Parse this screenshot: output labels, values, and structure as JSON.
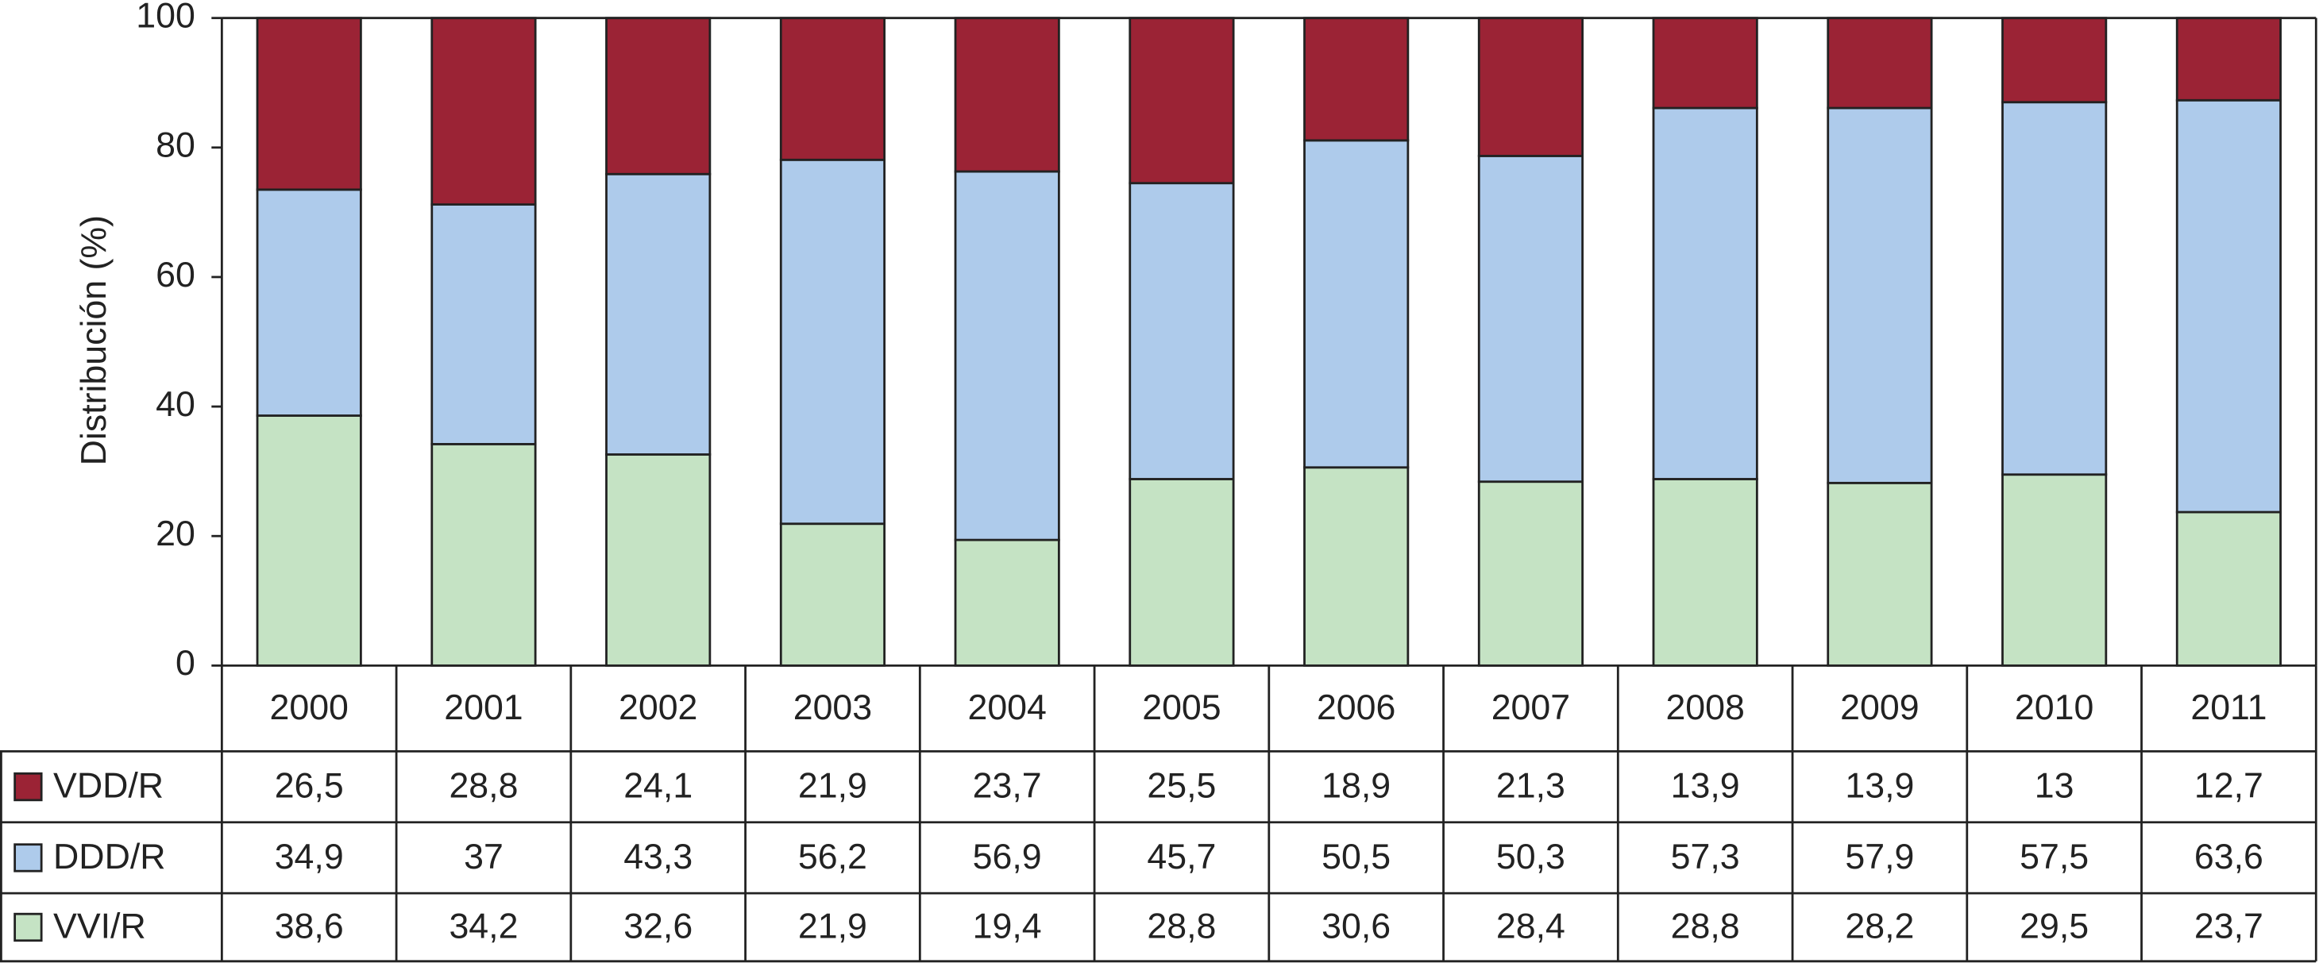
{
  "chart_data": {
    "type": "bar",
    "stacked": true,
    "y_label": "Distribución (%)",
    "categories": [
      "2000",
      "2001",
      "2002",
      "2003",
      "2004",
      "2005",
      "2006",
      "2007",
      "2008",
      "2009",
      "2010",
      "2011"
    ],
    "series": [
      {
        "name": "VDD/R",
        "color": "#9b2335",
        "values": [
          26.5,
          28.8,
          24.1,
          21.9,
          23.7,
          25.5,
          18.9,
          21.3,
          13.9,
          13.9,
          13,
          12.7
        ],
        "value_labels": [
          "26,5",
          "28,8",
          "24,1",
          "21,9",
          "23,7",
          "25,5",
          "18,9",
          "21,3",
          "13,9",
          "13,9",
          "13",
          "12,7"
        ]
      },
      {
        "name": "DDD/R",
        "color": "#aecbeb",
        "values": [
          34.9,
          37,
          43.3,
          56.2,
          56.9,
          45.7,
          50.5,
          50.3,
          57.3,
          57.9,
          57.5,
          63.6
        ],
        "value_labels": [
          "34,9",
          "37",
          "43,3",
          "56,2",
          "56,9",
          "45,7",
          "50,5",
          "50,3",
          "57,3",
          "57,9",
          "57,5",
          "63,6"
        ]
      },
      {
        "name": "VVI/R",
        "color": "#c5e3c4",
        "values": [
          38.6,
          34.2,
          32.6,
          21.9,
          19.4,
          28.8,
          30.6,
          28.4,
          28.8,
          28.2,
          29.5,
          23.7
        ],
        "value_labels": [
          "38,6",
          "34,2",
          "32,6",
          "21,9",
          "19,4",
          "28,8",
          "30,6",
          "28,4",
          "28,8",
          "28,2",
          "29,5",
          "23,7"
        ]
      }
    ],
    "ylim": [
      0,
      100
    ],
    "yticks": [
      0,
      20,
      40,
      60,
      80,
      100
    ],
    "grid": false
  }
}
